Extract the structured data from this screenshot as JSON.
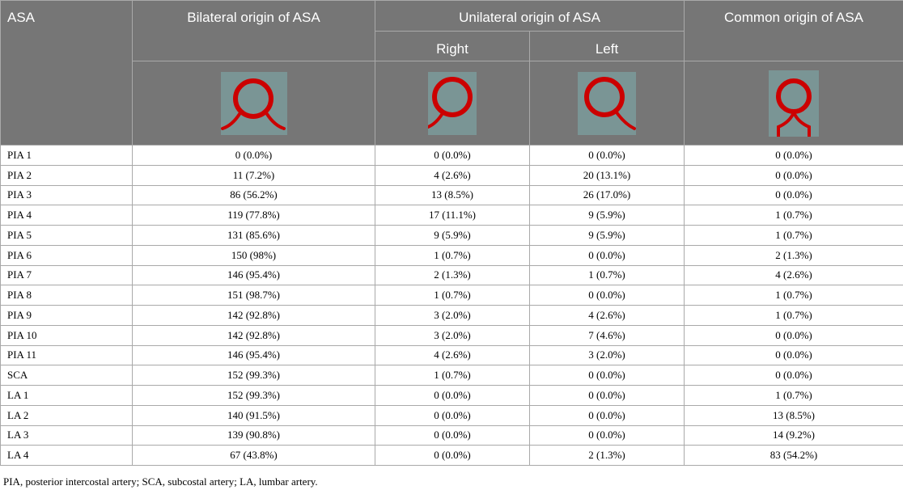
{
  "header": {
    "asa_label": "ASA",
    "bilateral_label": "Bilateral origin of ASA",
    "unilateral_label": "Unilateral origin of ASA",
    "right_label": "Right",
    "left_label": "Left",
    "common_label": "Common origin of ASA",
    "diagram_colors": {
      "background": "#7a9595",
      "artery": "#cc0000"
    }
  },
  "rows": [
    {
      "label": "PIA 1",
      "bilateral": "0 (0.0%)",
      "right": "0 (0.0%)",
      "left": "0 (0.0%)",
      "common": "0 (0.0%)"
    },
    {
      "label": "PIA 2",
      "bilateral": "11 (7.2%)",
      "right": "4 (2.6%)",
      "left": "20 (13.1%)",
      "common": "0 (0.0%)"
    },
    {
      "label": "PIA 3",
      "bilateral": "86 (56.2%)",
      "right": "13 (8.5%)",
      "left": "26 (17.0%)",
      "common": "0 (0.0%)"
    },
    {
      "label": "PIA 4",
      "bilateral": "119 (77.8%)",
      "right": "17 (11.1%)",
      "left": "9 (5.9%)",
      "common": "1 (0.7%)"
    },
    {
      "label": "PIA 5",
      "bilateral": "131 (85.6%)",
      "right": "9 (5.9%)",
      "left": "9 (5.9%)",
      "common": "1 (0.7%)"
    },
    {
      "label": "PIA 6",
      "bilateral": "150 (98%)",
      "right": "1 (0.7%)",
      "left": "0 (0.0%)",
      "common": "2 (1.3%)"
    },
    {
      "label": "PIA 7",
      "bilateral": "146 (95.4%)",
      "right": "2 (1.3%)",
      "left": "1 (0.7%)",
      "common": "4 (2.6%)"
    },
    {
      "label": "PIA 8",
      "bilateral": "151 (98.7%)",
      "right": "1 (0.7%)",
      "left": "0 (0.0%)",
      "common": "1 (0.7%)"
    },
    {
      "label": "PIA 9",
      "bilateral": "142 (92.8%)",
      "right": "3 (2.0%)",
      "left": "4 (2.6%)",
      "common": "1 (0.7%)"
    },
    {
      "label": "PIA 10",
      "bilateral": "142 (92.8%)",
      "right": "3 (2.0%)",
      "left": "7 (4.6%)",
      "common": "0 (0.0%)"
    },
    {
      "label": "PIA 11",
      "bilateral": "146 (95.4%)",
      "right": "4 (2.6%)",
      "left": "3 (2.0%)",
      "common": "0 (0.0%)"
    },
    {
      "label": "SCA",
      "bilateral": "152 (99.3%)",
      "right": "1 (0.7%)",
      "left": "0 (0.0%)",
      "common": "0 (0.0%)"
    },
    {
      "label": "LA 1",
      "bilateral": "152 (99.3%)",
      "right": "0 (0.0%)",
      "left": "0 (0.0%)",
      "common": "1 (0.7%)"
    },
    {
      "label": "LA 2",
      "bilateral": "140 (91.5%)",
      "right": "0 (0.0%)",
      "left": "0 (0.0%)",
      "common": "13 (8.5%)"
    },
    {
      "label": "LA 3",
      "bilateral": "139 (90.8%)",
      "right": "0 (0.0%)",
      "left": "0 (0.0%)",
      "common": "14 (9.2%)"
    },
    {
      "label": "LA 4",
      "bilateral": "67 (43.8%)",
      "right": "0 (0.0%)",
      "left": "2 (1.3%)",
      "common": "83 (54.2%)"
    }
  ],
  "footnote": "PIA, posterior intercostal artery; SCA, subcostal artery; LA, lumbar artery."
}
